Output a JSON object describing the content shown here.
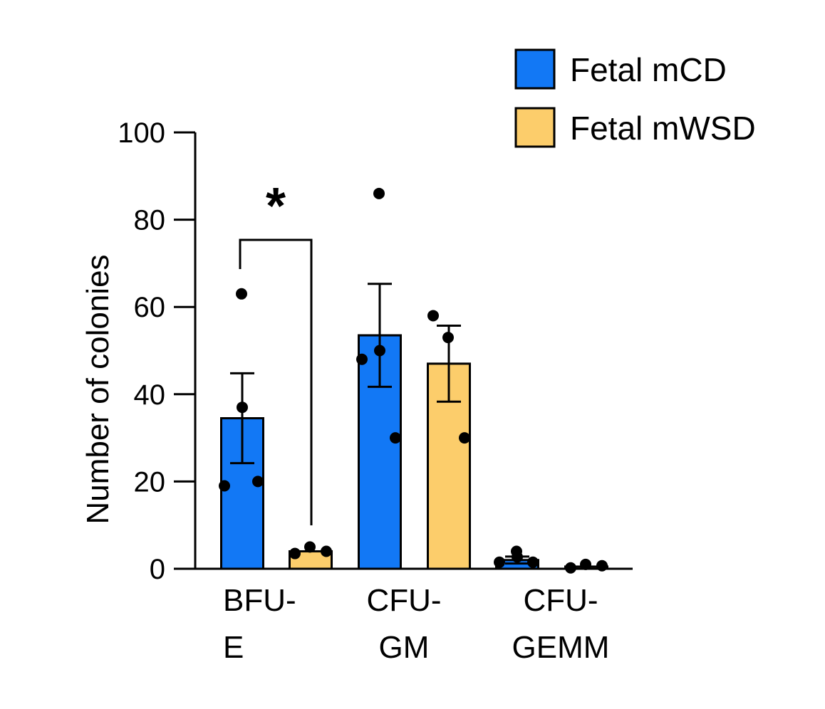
{
  "chart_data": {
    "type": "bar",
    "ylabel": "Number of colonies",
    "ylim": [
      0,
      100
    ],
    "yticks": [
      0,
      20,
      40,
      60,
      80,
      100
    ],
    "categories": [
      {
        "lines": [
          "BFU-",
          "E"
        ]
      },
      {
        "lines": [
          "CFU-",
          "GM"
        ]
      },
      {
        "lines": [
          "CFU-",
          "GEMM"
        ]
      }
    ],
    "series": [
      {
        "name": "Fetal mCD",
        "color": "#1278f5",
        "values": [
          34.5,
          53.5,
          2.0
        ],
        "errors": [
          10.3,
          11.8,
          0.8
        ],
        "points": [
          [
            63,
            37,
            19,
            20
          ],
          [
            86,
            50,
            48,
            30
          ],
          [
            4,
            2.7,
            1.5,
            1.5
          ]
        ]
      },
      {
        "name": "Fetal mWSD",
        "color": "#fccd6b",
        "values": [
          4.0,
          47.0,
          0.5
        ],
        "errors": [
          0.3,
          8.7,
          0.2
        ],
        "points": [
          [
            3.5,
            5,
            4
          ],
          [
            58,
            53,
            30
          ],
          [
            0.2,
            1,
            0.7
          ]
        ]
      }
    ],
    "legend": {
      "position": "top-right"
    },
    "annotations": [
      {
        "type": "significance",
        "text": "*",
        "category": 0
      }
    ]
  }
}
